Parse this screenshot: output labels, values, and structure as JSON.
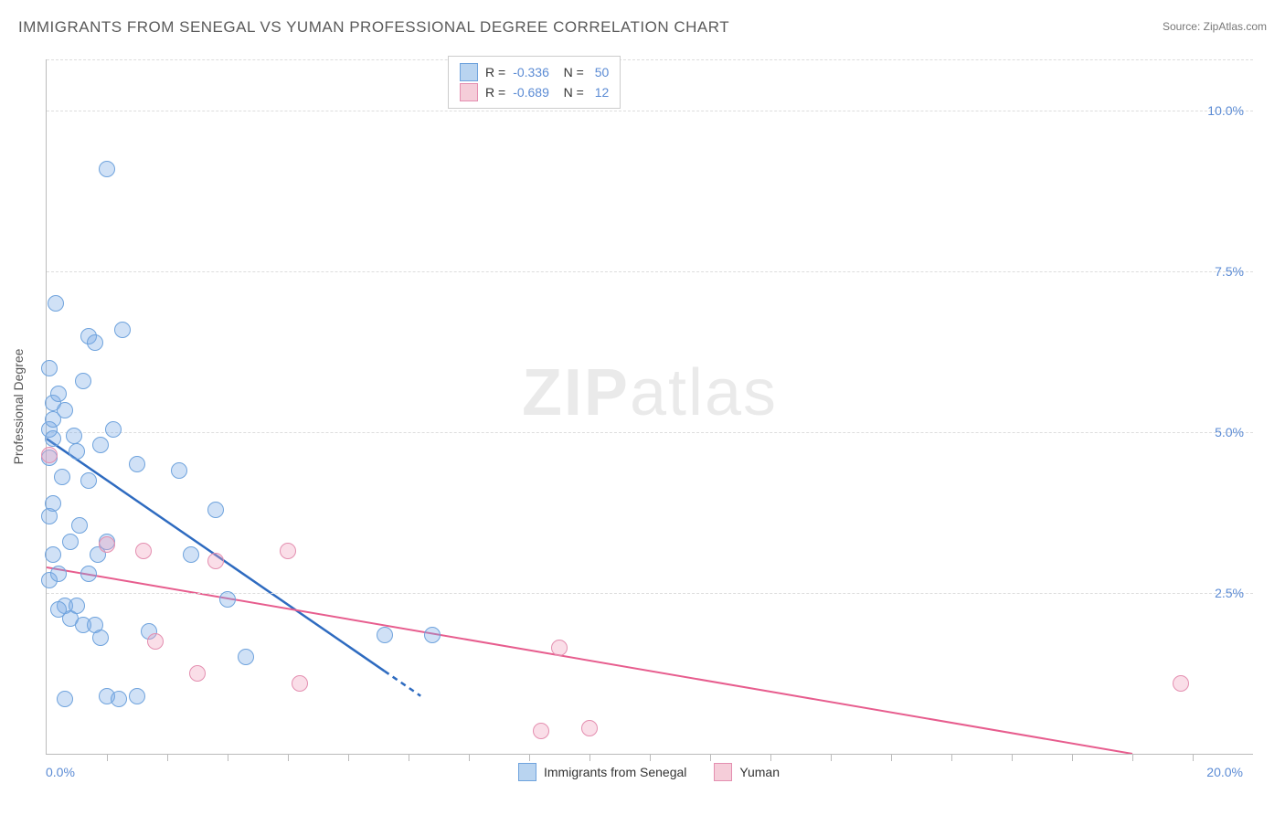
{
  "title": "IMMIGRANTS FROM SENEGAL VS YUMAN PROFESSIONAL DEGREE CORRELATION CHART",
  "source": "Source: ZipAtlas.com",
  "watermark": "ZIPatlas",
  "chart": {
    "type": "scatter",
    "xlim": [
      0,
      20
    ],
    "ylim": [
      0,
      10.8
    ],
    "x_axis_label_left": "0.0%",
    "x_axis_label_right": "20.0%",
    "y_label": "Professional Degree",
    "y_ticks": [
      2.5,
      5.0,
      7.5,
      10.0
    ],
    "y_tick_labels": [
      "2.5%",
      "5.0%",
      "7.5%",
      "10.0%"
    ],
    "x_minor_ticks": [
      1,
      2,
      3,
      4,
      5,
      6,
      7,
      8,
      9,
      10,
      11,
      12,
      13,
      14,
      15,
      16,
      17,
      18,
      19
    ],
    "grid_color": "#dddddd",
    "axis_color": "#bbbbbb",
    "label_color": "#5b8bd4",
    "background_color": "#ffffff",
    "marker_radius": 8,
    "marker_stroke_width": 1.2,
    "series": {
      "senegal": {
        "label": "Immigrants from Senegal",
        "fill": "rgba(120,170,230,0.35)",
        "stroke": "#6fa3dd",
        "swatch_fill": "#b9d4f0",
        "swatch_border": "#6fa3dd",
        "R": "-0.336",
        "N": "50",
        "trend": {
          "x1": 0,
          "y1": 4.9,
          "x2": 6.2,
          "y2": 0.9,
          "solid_until_x": 5.6,
          "color": "#2e6bc0",
          "width": 2.5
        },
        "points": [
          [
            0.05,
            4.6
          ],
          [
            0.05,
            5.05
          ],
          [
            0.1,
            5.2
          ],
          [
            0.1,
            4.9
          ],
          [
            0.05,
            6.0
          ],
          [
            0.15,
            7.0
          ],
          [
            0.1,
            5.45
          ],
          [
            0.05,
            3.7
          ],
          [
            0.1,
            3.9
          ],
          [
            0.1,
            3.1
          ],
          [
            0.05,
            2.7
          ],
          [
            0.2,
            2.8
          ],
          [
            0.3,
            2.3
          ],
          [
            0.4,
            2.1
          ],
          [
            0.5,
            2.3
          ],
          [
            0.6,
            2.0
          ],
          [
            0.7,
            2.8
          ],
          [
            0.8,
            2.0
          ],
          [
            0.9,
            1.8
          ],
          [
            1.0,
            0.9
          ],
          [
            1.2,
            0.85
          ],
          [
            1.5,
            0.9
          ],
          [
            1.7,
            1.9
          ],
          [
            0.3,
            0.85
          ],
          [
            0.4,
            3.3
          ],
          [
            0.5,
            4.7
          ],
          [
            0.6,
            5.8
          ],
          [
            0.7,
            6.5
          ],
          [
            0.8,
            6.4
          ],
          [
            0.9,
            4.8
          ],
          [
            1.0,
            3.3
          ],
          [
            1.1,
            5.05
          ],
          [
            1.25,
            6.6
          ],
          [
            1.5,
            4.5
          ],
          [
            0.2,
            5.6
          ],
          [
            0.25,
            4.3
          ],
          [
            0.3,
            5.35
          ],
          [
            0.45,
            4.95
          ],
          [
            0.55,
            3.55
          ],
          [
            0.7,
            4.25
          ],
          [
            0.85,
            3.1
          ],
          [
            0.2,
            2.25
          ],
          [
            1.0,
            9.1
          ],
          [
            2.2,
            4.4
          ],
          [
            2.4,
            3.1
          ],
          [
            2.8,
            3.8
          ],
          [
            3.0,
            2.4
          ],
          [
            3.3,
            1.5
          ],
          [
            5.6,
            1.85
          ],
          [
            6.4,
            1.85
          ]
        ]
      },
      "yuman": {
        "label": "Yuman",
        "fill": "rgba(240,160,190,0.35)",
        "stroke": "#e48fb0",
        "swatch_fill": "#f5cdd9",
        "swatch_border": "#e48fb0",
        "R": "-0.689",
        "N": "12",
        "trend": {
          "x1": 0,
          "y1": 2.9,
          "x2": 18.0,
          "y2": 0.0,
          "color": "#e75d8e",
          "width": 2
        },
        "points": [
          [
            0.05,
            4.65
          ],
          [
            1.0,
            3.25
          ],
          [
            1.6,
            3.15
          ],
          [
            1.8,
            1.75
          ],
          [
            2.8,
            3.0
          ],
          [
            2.5,
            1.25
          ],
          [
            4.2,
            1.1
          ],
          [
            4.0,
            3.15
          ],
          [
            8.5,
            1.65
          ],
          [
            8.2,
            0.35
          ],
          [
            9.0,
            0.4
          ],
          [
            18.8,
            1.1
          ]
        ]
      }
    }
  },
  "legend_bottom": {
    "items": [
      {
        "key": "senegal"
      },
      {
        "key": "yuman"
      }
    ]
  }
}
